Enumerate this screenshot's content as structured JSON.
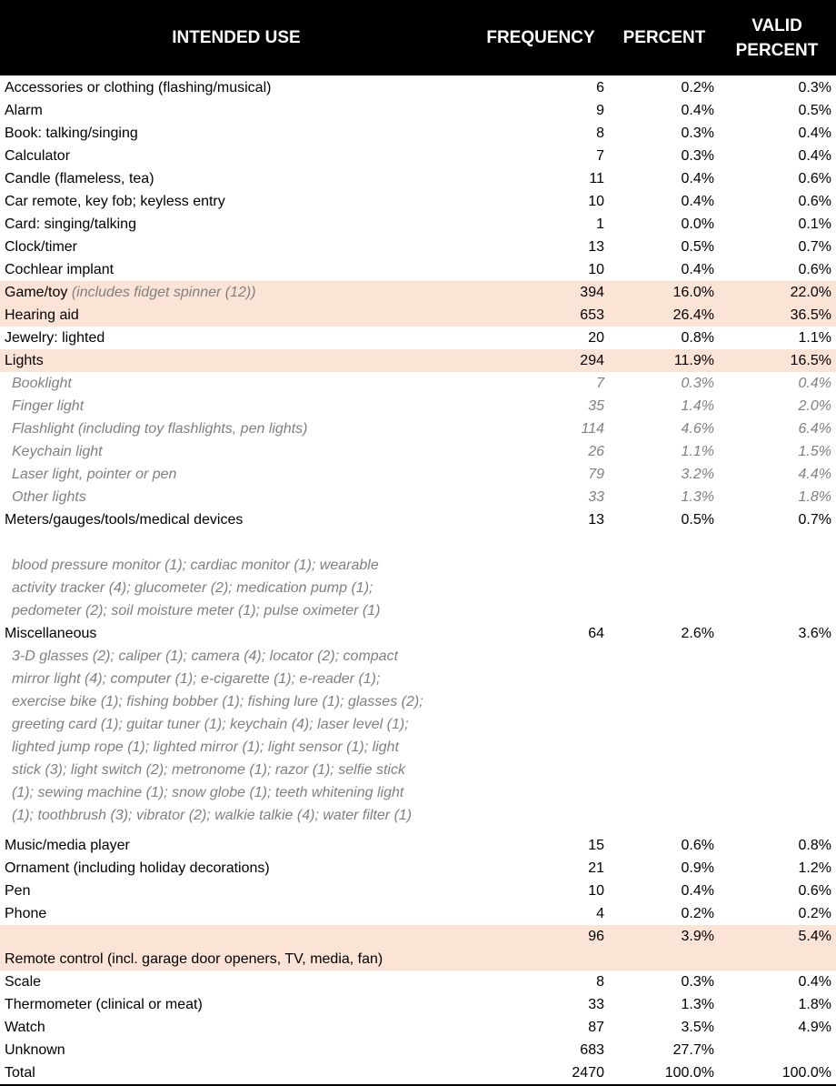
{
  "header": {
    "intended_use": "INTENDED USE",
    "frequency": "FREQUENCY",
    "percent": "PERCENT",
    "valid_percent_1": "VALID",
    "valid_percent_2": "PERCENT"
  },
  "highlight_color": "#fbe4d5",
  "rows": [
    {
      "type": "row",
      "label": "Accessories or clothing (flashing/musical)",
      "freq": "6",
      "pct": "0.2%",
      "valid": "0.3%"
    },
    {
      "type": "row",
      "label": "Alarm",
      "freq": "9",
      "pct": "0.4%",
      "valid": "0.5%"
    },
    {
      "type": "row",
      "label": "Book: talking/singing",
      "freq": "8",
      "pct": "0.3%",
      "valid": "0.4%"
    },
    {
      "type": "row",
      "label": "Calculator",
      "freq": "7",
      "pct": "0.3%",
      "valid": "0.4%"
    },
    {
      "type": "row",
      "label": "Candle (flameless, tea)",
      "freq": "11",
      "pct": "0.4%",
      "valid": "0.6%"
    },
    {
      "type": "row",
      "label": "Car remote, key fob; keyless entry",
      "freq": "10",
      "pct": "0.4%",
      "valid": "0.6%"
    },
    {
      "type": "row",
      "label": "Card: singing/talking",
      "freq": "1",
      "pct": "0.0%",
      "valid": "0.1%"
    },
    {
      "type": "row",
      "label": "Clock/timer",
      "freq": "13",
      "pct": "0.5%",
      "valid": "0.7%"
    },
    {
      "type": "row",
      "label": "Cochlear implant",
      "freq": "10",
      "pct": "0.4%",
      "valid": "0.6%"
    },
    {
      "type": "hl",
      "label": "Game/toy",
      "inline_note": "(includes fidget spinner (12))",
      "freq": "394",
      "pct": "16.0%",
      "valid": "22.0%"
    },
    {
      "type": "hl",
      "label": "Hearing aid",
      "freq": "653",
      "pct": "26.4%",
      "valid": "36.5%"
    },
    {
      "type": "row",
      "label": "Jewelry: lighted",
      "freq": "20",
      "pct": "0.8%",
      "valid": "1.1%"
    },
    {
      "type": "hl",
      "label": "Lights",
      "freq": "294",
      "pct": "11.9%",
      "valid": "16.5%"
    },
    {
      "type": "sub",
      "label": "Booklight",
      "freq": "7",
      "pct": "0.3%",
      "valid": "0.4%"
    },
    {
      "type": "sub",
      "label": "Finger light",
      "freq": "35",
      "pct": "1.4%",
      "valid": "2.0%"
    },
    {
      "type": "sub",
      "label": "Flashlight (including toy flashlights, pen lights)",
      "freq": "114",
      "pct": "4.6%",
      "valid": "6.4%"
    },
    {
      "type": "sub",
      "label": "Keychain light",
      "freq": "26",
      "pct": "1.1%",
      "valid": "1.5%"
    },
    {
      "type": "sub",
      "label": "Laser light, pointer or pen",
      "freq": "79",
      "pct": "3.2%",
      "valid": "4.4%"
    },
    {
      "type": "sub",
      "label": "Other lights",
      "freq": "33",
      "pct": "1.3%",
      "valid": "1.8%"
    },
    {
      "type": "row",
      "label": "Meters/gauges/tools/medical devices",
      "freq": "13",
      "pct": "0.5%",
      "valid": "0.7%"
    },
    {
      "type": "blank"
    },
    {
      "type": "note",
      "lines": [
        "blood pressure monitor (1); cardiac monitor (1);  wearable",
        "activity tracker (4); glucometer (2); medication pump (1);",
        "pedometer (2); soil moisture meter (1); pulse oximeter (1)"
      ]
    },
    {
      "type": "row",
      "label": "Miscellaneous",
      "freq": "64",
      "pct": "2.6%",
      "valid": "3.6%"
    },
    {
      "type": "note",
      "pad": true,
      "lines": [
        "3-D glasses (2); caliper (1); camera (4); locator (2); compact",
        "mirror light (4);  computer (1);  e-cigarette (1); e-reader (1);",
        "exercise bike (1); fishing bobber (1); fishing lure (1); glasses (2);",
        "greeting card (1); guitar tuner (1); keychain (4); laser level (1);",
        "lighted jump rope (1); lighted mirror (1); light sensor (1); light",
        "stick (3); light switch (2); metronome (1); razor (1); selfie stick",
        "(1); sewing machine (1); snow globe (1); teeth whitening light",
        "(1); toothbrush (3); vibrator (2); walkie talkie (4); water filter (1)"
      ]
    },
    {
      "type": "row",
      "label": "Music/media player",
      "freq": "15",
      "pct": "0.6%",
      "valid": "0.8%"
    },
    {
      "type": "row",
      "label": "Ornament (including holiday decorations)",
      "freq": "21",
      "pct": "0.9%",
      "valid": "1.2%"
    },
    {
      "type": "row",
      "label": "Pen",
      "freq": "10",
      "pct": "0.4%",
      "valid": "0.6%"
    },
    {
      "type": "row",
      "label": "Phone",
      "freq": "4",
      "pct": "0.2%",
      "valid": "0.2%"
    },
    {
      "type": "tall",
      "label": "Remote control (incl. garage door openers, TV, media, fan)",
      "freq": "96",
      "pct": "3.9%",
      "valid": "5.4%"
    },
    {
      "type": "row",
      "label": "Scale",
      "freq": "8",
      "pct": "0.3%",
      "valid": "0.4%"
    },
    {
      "type": "row",
      "label": "Thermometer (clinical or meat)",
      "freq": "33",
      "pct": "1.3%",
      "valid": "1.8%"
    },
    {
      "type": "row",
      "label": "Watch",
      "freq": "87",
      "pct": "3.5%",
      "valid": "4.9%"
    },
    {
      "type": "row",
      "label": "Unknown",
      "freq": "683",
      "pct": "27.7%",
      "valid": ""
    },
    {
      "type": "total",
      "label": "Total",
      "freq": "2470",
      "pct": "100.0%",
      "valid": "100.0%"
    }
  ]
}
